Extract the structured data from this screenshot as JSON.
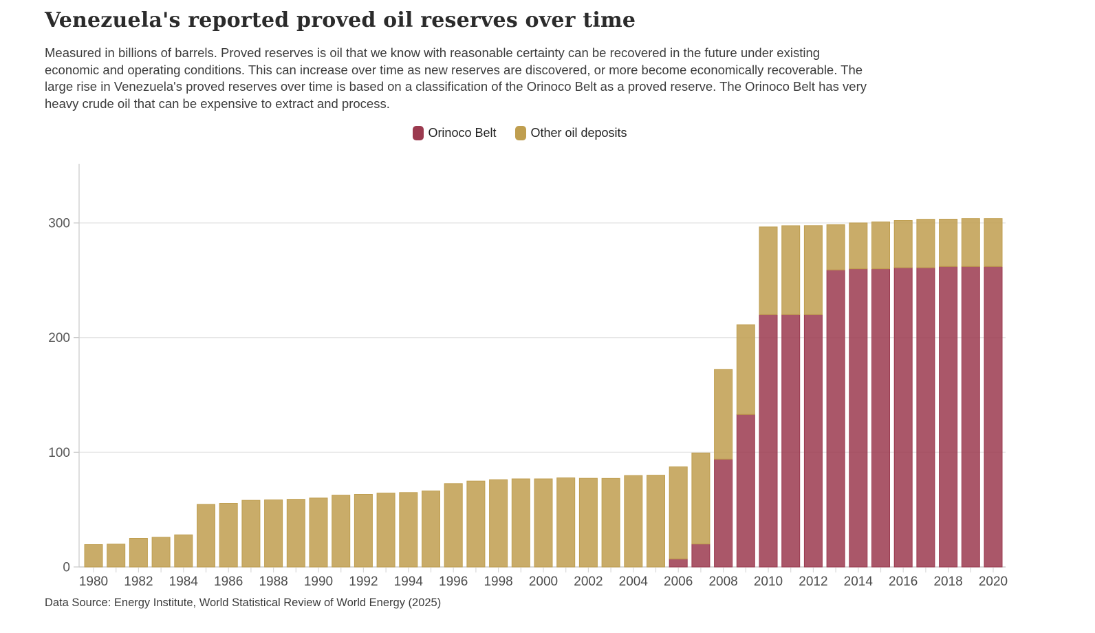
{
  "header": {
    "title": "Venezuela's reported proved oil reserves over time",
    "subtitle_lines": [
      "Measured in billions of barrels. Proved reserves is oil that we know with reasonable certainty can be recovered in the future under existing",
      "economic and operating conditions. This can increase over time as new reserves are discovered, or more become economically recoverable. The",
      "large rise in Venezuela's proved reserves over time is based on a classification of the Orinoco Belt as a proved reserve. The Orinoco Belt has very",
      "heavy crude oil that can be expensive to extract and process."
    ]
  },
  "legend": {
    "items": [
      {
        "label": "Orinoco Belt",
        "color": "#9b3a4f"
      },
      {
        "label": "Other oil deposits",
        "color": "#bf9e4f"
      }
    ]
  },
  "footer": {
    "source": "Data Source: Energy Institute, World Statistical Review of World Energy (2025)"
  },
  "chart_data": {
    "type": "bar",
    "stacked": true,
    "title": "Venezuela's reported proved oil reserves over time",
    "unit": "billions of barrels",
    "x": [
      1980,
      1981,
      1982,
      1983,
      1984,
      1985,
      1986,
      1987,
      1988,
      1989,
      1990,
      1991,
      1992,
      1993,
      1994,
      1995,
      1996,
      1997,
      1998,
      1999,
      2000,
      2001,
      2002,
      2003,
      2004,
      2005,
      2006,
      2007,
      2008,
      2009,
      2010,
      2011,
      2012,
      2013,
      2014,
      2015,
      2016,
      2017,
      2018,
      2019,
      2020
    ],
    "series": [
      {
        "name": "Orinoco Belt",
        "color": "#9b3a4f",
        "values": [
          0,
          0,
          0,
          0,
          0,
          0,
          0,
          0,
          0,
          0,
          0,
          0,
          0,
          0,
          0,
          0,
          0,
          0,
          0,
          0,
          0,
          0,
          0,
          0,
          0,
          0,
          7,
          20,
          94,
          133,
          220,
          220,
          220,
          259,
          260,
          260,
          261,
          261,
          262,
          262,
          262
        ]
      },
      {
        "name": "Other oil deposits",
        "color": "#bf9e4f",
        "values": [
          19.5,
          19.9,
          24.9,
          25.9,
          28.0,
          54.5,
          55.5,
          58.1,
          58.5,
          59.0,
          60.1,
          62.6,
          63.3,
          64.4,
          64.9,
          66.3,
          72.7,
          74.9,
          76.1,
          76.8,
          76.8,
          77.7,
          77.3,
          77.2,
          79.7,
          80.0,
          80.3,
          79.4,
          78.3,
          78.2,
          76.5,
          77.6,
          77.7,
          39.4,
          40.0,
          40.9,
          41.1,
          42.2,
          41.3,
          41.8,
          41.8
        ]
      }
    ],
    "ylim": [
      0,
      350
    ],
    "yticks": [
      0,
      100,
      200,
      300
    ],
    "xticks": [
      1980,
      1982,
      1984,
      1986,
      1988,
      1990,
      1992,
      1994,
      1996,
      1998,
      2000,
      2002,
      2004,
      2006,
      2008,
      2010,
      2012,
      2014,
      2016,
      2018,
      2020
    ],
    "grid": true,
    "legend_position": "top-center"
  }
}
